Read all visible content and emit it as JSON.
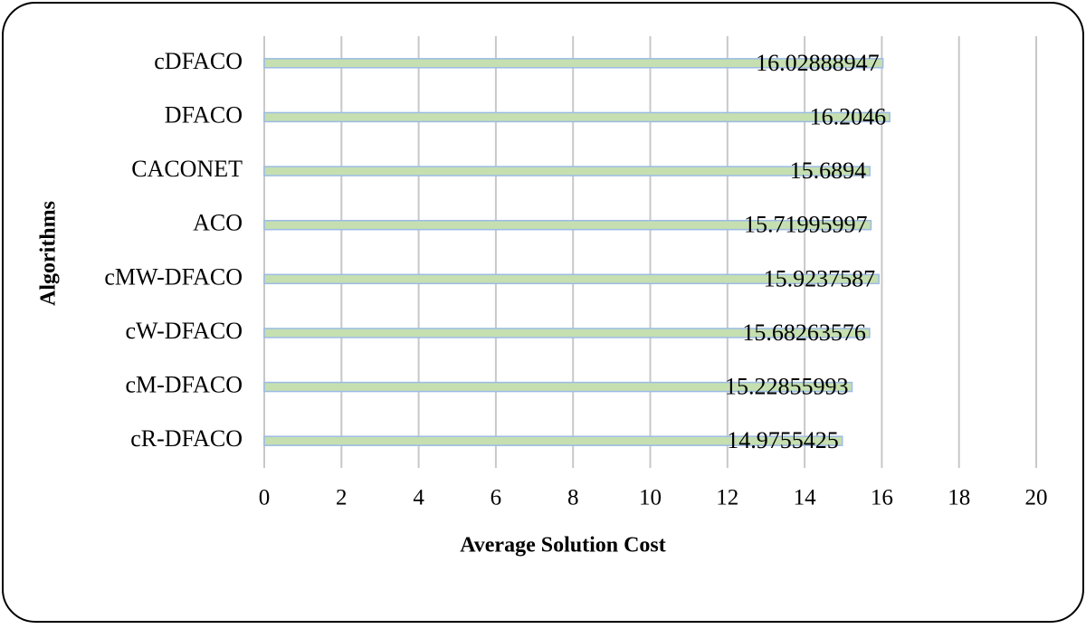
{
  "chart_data": {
    "type": "bar",
    "orientation": "horizontal",
    "x_label": "Average Solution Cost",
    "y_label": "Algorithms",
    "categories": [
      "cDFACO",
      "DFACO",
      "CACONET",
      "ACO",
      "cMW-DFACO",
      "cW-DFACO",
      "cM-DFACO",
      "cR-DFACO"
    ],
    "values": [
      16.02888947,
      16.2046,
      15.6894,
      15.71995997,
      15.9237587,
      15.68263576,
      15.22855993,
      14.9755425
    ],
    "color": "#c5dfb0",
    "xlim": [
      0,
      20
    ],
    "xticks": [
      0,
      2,
      4,
      6,
      8,
      10,
      12,
      14,
      16,
      18,
      20
    ],
    "grid": true
  }
}
